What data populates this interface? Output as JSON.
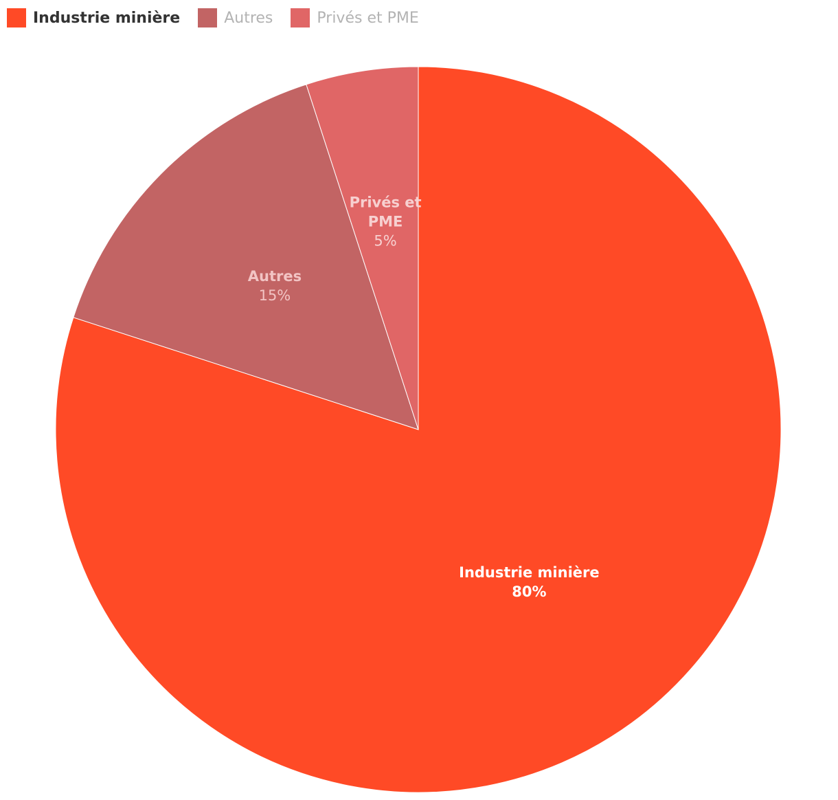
{
  "chart_data": {
    "type": "pie",
    "series": [
      {
        "name": "Industrie minière",
        "value": 80,
        "label": "80%",
        "color": "#ff4a26",
        "label_color": "#ffffff",
        "label_lines": [
          "Industrie minière"
        ]
      },
      {
        "name": "Autres",
        "value": 15,
        "label": "15%",
        "color": "#c26464",
        "label_color": "#f2c4c4",
        "label_lines": [
          "Autres"
        ]
      },
      {
        "name": "Privés et PME",
        "value": 5,
        "label": "5%",
        "color": "#e06666",
        "label_color": "#f7d0d0",
        "label_lines": [
          "Privés et",
          "PME"
        ]
      }
    ],
    "legend": {
      "position": "top-left",
      "active_index": 0
    }
  }
}
